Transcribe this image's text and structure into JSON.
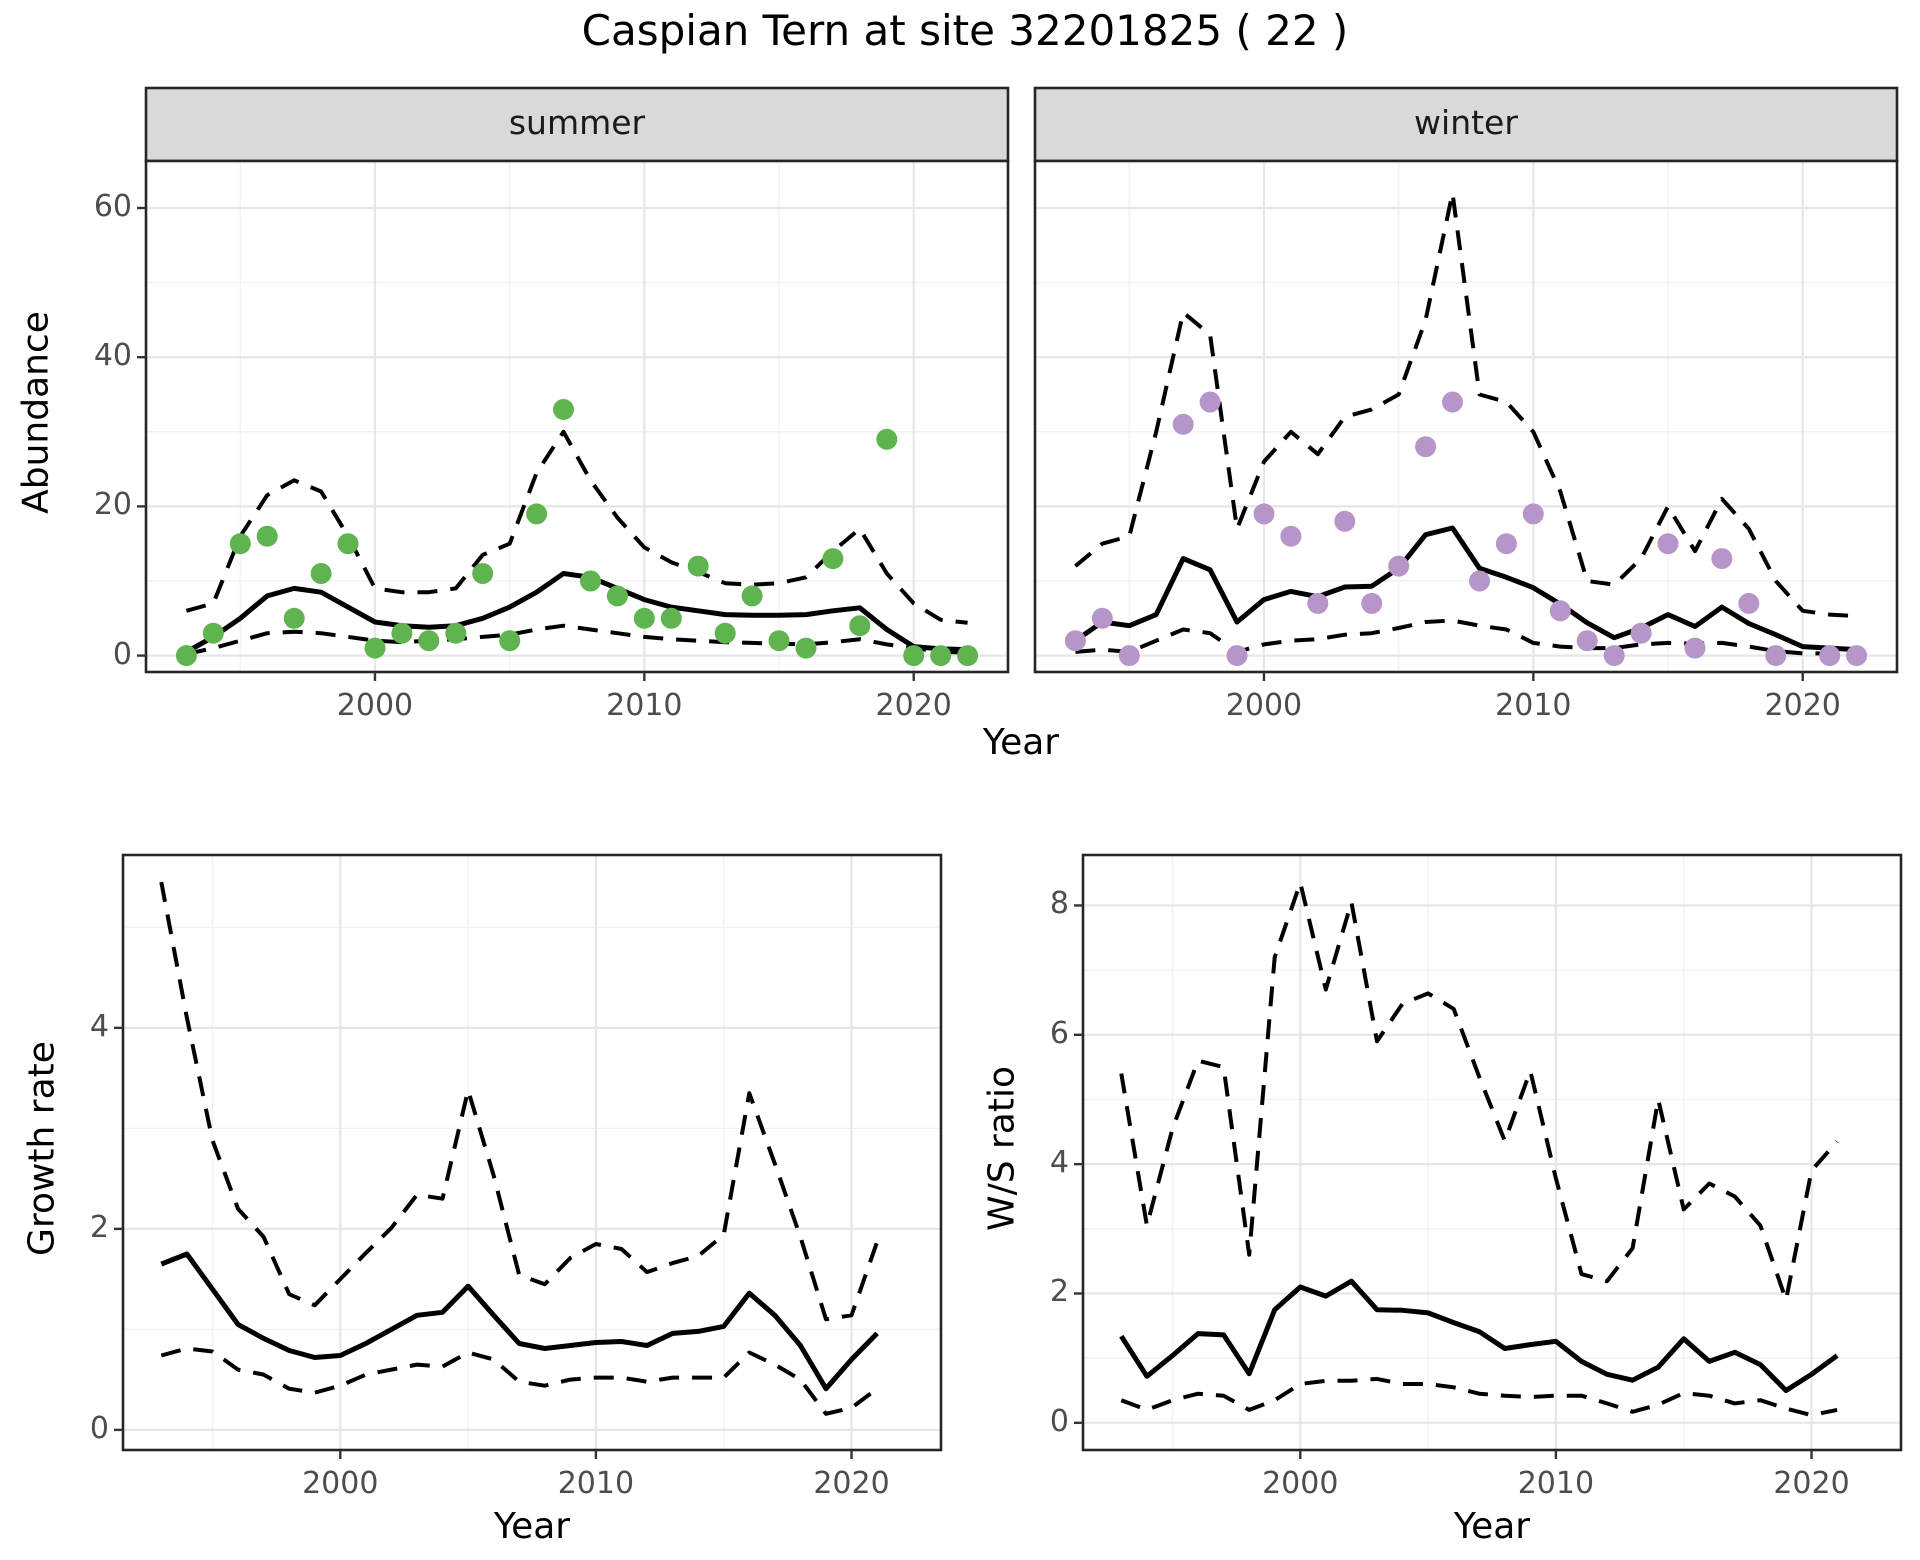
{
  "title": "Caspian Tern at site 32201825 ( 22 )",
  "facets": {
    "summer": "summer",
    "winter": "winter"
  },
  "axis_titles": {
    "abundance": "Abundance",
    "year_top": "Year",
    "growth": "Growth rate",
    "ws": "W/S ratio",
    "year_growth": "Year",
    "year_ws": "Year"
  },
  "colors": {
    "point_summer": "#5fb450",
    "point_winter": "#b795c8",
    "line": "#000000",
    "grid_major": "#e6e6e6",
    "grid_minor": "#f1f1f1",
    "strip_bg": "#d9d9d9",
    "panel_border": "#262626",
    "panel_bg": "#ffffff",
    "tick_mark": "#333333",
    "tick_label": "#4d4d4d"
  },
  "chart_data": [
    {
      "id": "abundance-summer",
      "type": "line",
      "facet": "summer",
      "xlabel": "Year",
      "ylabel": "Abundance",
      "xlim": [
        1991.5,
        2023.5
      ],
      "ylim": [
        -2.2,
        66.3
      ],
      "x_major": [
        2000,
        2010,
        2020
      ],
      "x_minor": [
        1995,
        2005,
        2015
      ],
      "y_major": [
        0,
        20,
        40,
        60
      ],
      "y_minor": [
        10,
        30,
        50
      ],
      "x_tick_labels": [
        "2000",
        "2010",
        "2020"
      ],
      "y_tick_labels": [
        "0",
        "20",
        "40",
        "60"
      ],
      "x": [
        1993,
        1994,
        1995,
        1996,
        1997,
        1998,
        1999,
        2000,
        2001,
        2002,
        2003,
        2004,
        2005,
        2006,
        2007,
        2008,
        2009,
        2010,
        2011,
        2012,
        2013,
        2014,
        2015,
        2016,
        2017,
        2018,
        2019,
        2020,
        2021,
        2022
      ],
      "series": [
        {
          "name": "observed",
          "style": "points",
          "color_key": "point_summer",
          "values": [
            0,
            3,
            15,
            16,
            5,
            11,
            15,
            1,
            3,
            2,
            3,
            11,
            2,
            19,
            33,
            10,
            8,
            5,
            5,
            12,
            3,
            8,
            2,
            1,
            13,
            4,
            29,
            0,
            0,
            0
          ]
        },
        {
          "name": "upper_ci",
          "style": "dashed",
          "values": [
            6,
            7,
            16,
            21.5,
            23.5,
            22,
            16,
            9,
            8.5,
            8.5,
            9,
            13.5,
            15,
            24.5,
            30,
            23.5,
            18.5,
            14.5,
            12.5,
            11.2,
            9.7,
            9.5,
            9.7,
            10.5,
            14,
            17,
            11,
            7,
            4.8,
            4.4
          ]
        },
        {
          "name": "lower_ci",
          "style": "dashed",
          "values": [
            0.2,
            1,
            2,
            3,
            3.2,
            3,
            2.5,
            2,
            1.8,
            2,
            2.2,
            2.5,
            2.8,
            3.5,
            4,
            3.5,
            3,
            2.5,
            2.2,
            2,
            1.8,
            1.7,
            1.6,
            1.5,
            1.8,
            2.2,
            1.5,
            1,
            0.5,
            0.4
          ]
        },
        {
          "name": "median",
          "style": "solid",
          "values": [
            0.5,
            2.5,
            5,
            8,
            9,
            8.5,
            6.5,
            4.5,
            4,
            3.8,
            4,
            5,
            6.5,
            8.5,
            11,
            10.5,
            9,
            7.5,
            6.5,
            6,
            5.5,
            5.4,
            5.4,
            5.5,
            6,
            6.4,
            3.5,
            1.2,
            0.9,
            0.8
          ]
        }
      ]
    },
    {
      "id": "abundance-winter",
      "type": "line",
      "facet": "winter",
      "xlabel": "Year",
      "ylabel": "Abundance",
      "xlim": [
        1991.5,
        2023.5
      ],
      "ylim": [
        -2.2,
        66.3
      ],
      "x_major": [
        2000,
        2010,
        2020
      ],
      "x_minor": [
        1995,
        2005,
        2015
      ],
      "y_major": [
        0,
        20,
        40,
        60
      ],
      "y_minor": [
        10,
        30,
        50
      ],
      "x_tick_labels": [
        "2000",
        "2010",
        "2020"
      ],
      "y_tick_labels": null,
      "x": [
        1993,
        1994,
        1995,
        1996,
        1997,
        1998,
        1999,
        2000,
        2001,
        2002,
        2003,
        2004,
        2005,
        2006,
        2007,
        2008,
        2009,
        2010,
        2011,
        2012,
        2013,
        2014,
        2015,
        2016,
        2017,
        2018,
        2019,
        2020,
        2021,
        2022
      ],
      "series": [
        {
          "name": "observed",
          "style": "points",
          "color_key": "point_winter",
          "values": [
            2,
            5,
            0,
            null,
            31,
            34,
            0,
            19,
            16,
            7,
            18,
            7,
            12,
            28,
            34,
            10,
            15,
            19,
            6,
            2,
            0,
            3,
            15,
            1,
            13,
            7,
            0,
            null,
            0,
            0
          ]
        },
        {
          "name": "upper_ci",
          "style": "dashed",
          "values": [
            12,
            15,
            16,
            30,
            46,
            43,
            17,
            26,
            30,
            27,
            32,
            33,
            35,
            45,
            62,
            35,
            34,
            30,
            22,
            10,
            9.5,
            13,
            20,
            14,
            21,
            17,
            10,
            6,
            5.5,
            5.3
          ]
        },
        {
          "name": "lower_ci",
          "style": "dashed",
          "values": [
            0.5,
            0.8,
            0.5,
            2,
            3.5,
            3,
            0.5,
            1.5,
            2,
            2.2,
            2.8,
            3,
            3.7,
            4.5,
            4.7,
            4,
            3.5,
            1.7,
            1.2,
            1,
            1,
            1.5,
            1.7,
            1.6,
            1.7,
            1.2,
            0.6,
            0.3,
            0.3,
            0.3
          ]
        },
        {
          "name": "median",
          "style": "solid",
          "values": [
            2,
            4.5,
            4,
            5.5,
            13,
            11.5,
            4.5,
            7.5,
            8.6,
            7.9,
            9.2,
            9.3,
            11.7,
            16.2,
            17.1,
            11.7,
            10.5,
            9.1,
            6.9,
            4.4,
            2.4,
            3.7,
            5.5,
            3.9,
            6.5,
            4.3,
            2.8,
            1.2,
            1,
            0.8
          ]
        }
      ]
    },
    {
      "id": "growth-rate",
      "type": "line",
      "xlabel": "Year",
      "ylabel": "Growth rate",
      "xlim": [
        1991.5,
        2023.5
      ],
      "ylim": [
        -0.2,
        5.72
      ],
      "x_major": [
        2000,
        2010,
        2020
      ],
      "x_minor": [
        1995,
        2005,
        2015
      ],
      "y_major": [
        0,
        2,
        4
      ],
      "y_minor": [
        1,
        3,
        5
      ],
      "x_tick_labels": [
        "2000",
        "2010",
        "2020"
      ],
      "y_tick_labels": [
        "0",
        "2",
        "4"
      ],
      "x": [
        1993,
        1994,
        1995,
        1996,
        1997,
        1998,
        1999,
        2000,
        2001,
        2002,
        2003,
        2004,
        2005,
        2006,
        2007,
        2008,
        2009,
        2010,
        2011,
        2012,
        2013,
        2014,
        2015,
        2016,
        2017,
        2018,
        2019,
        2020,
        2021
      ],
      "series": [
        {
          "name": "upper_ci",
          "style": "dashed",
          "values": [
            5.45,
            4.1,
            2.88,
            2.2,
            1.92,
            1.35,
            1.24,
            1.5,
            1.76,
            2.01,
            2.34,
            2.3,
            3.38,
            2.53,
            1.54,
            1.45,
            1.71,
            1.85,
            1.8,
            1.57,
            1.66,
            1.73,
            1.94,
            3.35,
            2.65,
            1.92,
            1.1,
            1.14,
            1.87
          ]
        },
        {
          "name": "lower_ci",
          "style": "dashed",
          "values": [
            0.74,
            0.81,
            0.78,
            0.6,
            0.55,
            0.41,
            0.37,
            0.44,
            0.55,
            0.6,
            0.65,
            0.63,
            0.77,
            0.7,
            0.48,
            0.44,
            0.5,
            0.52,
            0.52,
            0.48,
            0.52,
            0.52,
            0.52,
            0.77,
            0.65,
            0.5,
            0.16,
            0.22,
            0.41
          ]
        },
        {
          "name": "median",
          "style": "solid",
          "values": [
            1.65,
            1.75,
            1.4,
            1.05,
            0.91,
            0.79,
            0.72,
            0.74,
            0.86,
            1.0,
            1.14,
            1.17,
            1.43,
            1.14,
            0.86,
            0.81,
            0.84,
            0.87,
            0.88,
            0.84,
            0.96,
            0.98,
            1.03,
            1.36,
            1.14,
            0.84,
            0.41,
            0.7,
            0.96
          ]
        }
      ]
    },
    {
      "id": "ws-ratio",
      "type": "line",
      "xlabel": "Year",
      "ylabel": "W/S ratio",
      "xlim": [
        1991.5,
        2023.5
      ],
      "ylim": [
        -0.42,
        8.78
      ],
      "x_major": [
        2000,
        2010,
        2020
      ],
      "x_minor": [
        1995,
        2005,
        2015
      ],
      "y_major": [
        0,
        2,
        4,
        6,
        8
      ],
      "y_minor": [
        1,
        3,
        5,
        7
      ],
      "x_tick_labels": [
        "2000",
        "2010",
        "2020"
      ],
      "y_tick_labels": [
        "0",
        "2",
        "4",
        "6",
        "8"
      ],
      "x": [
        1993,
        1994,
        1995,
        1996,
        1997,
        1998,
        1999,
        2000,
        2001,
        2002,
        2003,
        2004,
        2005,
        2006,
        2007,
        2008,
        2009,
        2010,
        2011,
        2012,
        2013,
        2014,
        2015,
        2016,
        2017,
        2018,
        2019,
        2020,
        2021
      ],
      "series": [
        {
          "name": "upper_ci",
          "style": "dashed",
          "values": [
            5.4,
            3.05,
            4.55,
            5.6,
            5.5,
            2.6,
            7.2,
            8.35,
            6.7,
            8.05,
            5.9,
            6.48,
            6.64,
            6.4,
            5.35,
            4.36,
            5.44,
            3.78,
            2.3,
            2.19,
            2.7,
            5.0,
            3.3,
            3.7,
            3.5,
            3.05,
            1.9,
            3.9,
            4.35
          ]
        },
        {
          "name": "lower_ci",
          "style": "dashed",
          "values": [
            0.35,
            0.2,
            0.35,
            0.45,
            0.42,
            0.2,
            0.35,
            0.6,
            0.65,
            0.65,
            0.68,
            0.6,
            0.6,
            0.55,
            0.45,
            0.42,
            0.4,
            0.42,
            0.42,
            0.3,
            0.17,
            0.28,
            0.46,
            0.42,
            0.3,
            0.35,
            0.22,
            0.12,
            0.2
          ]
        },
        {
          "name": "median",
          "style": "solid",
          "values": [
            1.34,
            0.72,
            1.04,
            1.38,
            1.36,
            0.76,
            1.75,
            2.1,
            1.96,
            2.19,
            1.75,
            1.74,
            1.7,
            1.55,
            1.41,
            1.15,
            1.21,
            1.26,
            0.95,
            0.75,
            0.66,
            0.86,
            1.3,
            0.95,
            1.09,
            0.9,
            0.5,
            0.75,
            1.04
          ]
        }
      ]
    }
  ]
}
